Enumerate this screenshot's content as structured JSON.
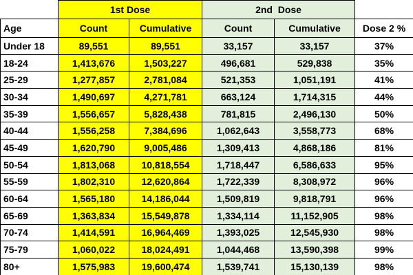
{
  "table": {
    "groups": [
      "1st Dose",
      "2nd  Dose"
    ],
    "columns": [
      "Age",
      "Count",
      "Cumulative",
      "Count",
      "Cumulative",
      "Dose 2 %"
    ],
    "rows": [
      [
        "Under 18",
        "89,551",
        "89,551",
        "33,157",
        "33,157",
        "37%"
      ],
      [
        "18-24",
        "1,413,676",
        "1,503,227",
        "496,681",
        "529,838",
        "35%"
      ],
      [
        "25-29",
        "1,277,857",
        "2,781,084",
        "521,353",
        "1,051,191",
        "41%"
      ],
      [
        "30-34",
        "1,490,697",
        "4,271,781",
        "663,124",
        "1,714,315",
        "44%"
      ],
      [
        "35-39",
        "1,556,657",
        "5,828,438",
        "781,815",
        "2,496,130",
        "50%"
      ],
      [
        "40-44",
        "1,556,258",
        "7,384,696",
        "1,062,643",
        "3,558,773",
        "68%"
      ],
      [
        "45-49",
        "1,620,790",
        "9,005,486",
        "1,309,413",
        "4,868,186",
        "81%"
      ],
      [
        "50-54",
        "1,813,068",
        "10,818,554",
        "1,718,447",
        "6,586,633",
        "95%"
      ],
      [
        "55-59",
        "1,802,310",
        "12,620,864",
        "1,722,339",
        "8,308,972",
        "96%"
      ],
      [
        "60-64",
        "1,565,180",
        "14,186,044",
        "1,509,819",
        "9,818,791",
        "96%"
      ],
      [
        "65-69",
        "1,363,834",
        "15,549,878",
        "1,334,114",
        "11,152,905",
        "98%"
      ],
      [
        "70-74",
        "1,414,591",
        "16,964,469",
        "1,393,025",
        "12,545,930",
        "98%"
      ],
      [
        "75-79",
        "1,060,022",
        "18,024,491",
        "1,044,468",
        "13,590,398",
        "99%"
      ],
      [
        "80+",
        "1,575,983",
        "19,600,474",
        "1,539,741",
        "15,130,139",
        "98%"
      ]
    ]
  }
}
